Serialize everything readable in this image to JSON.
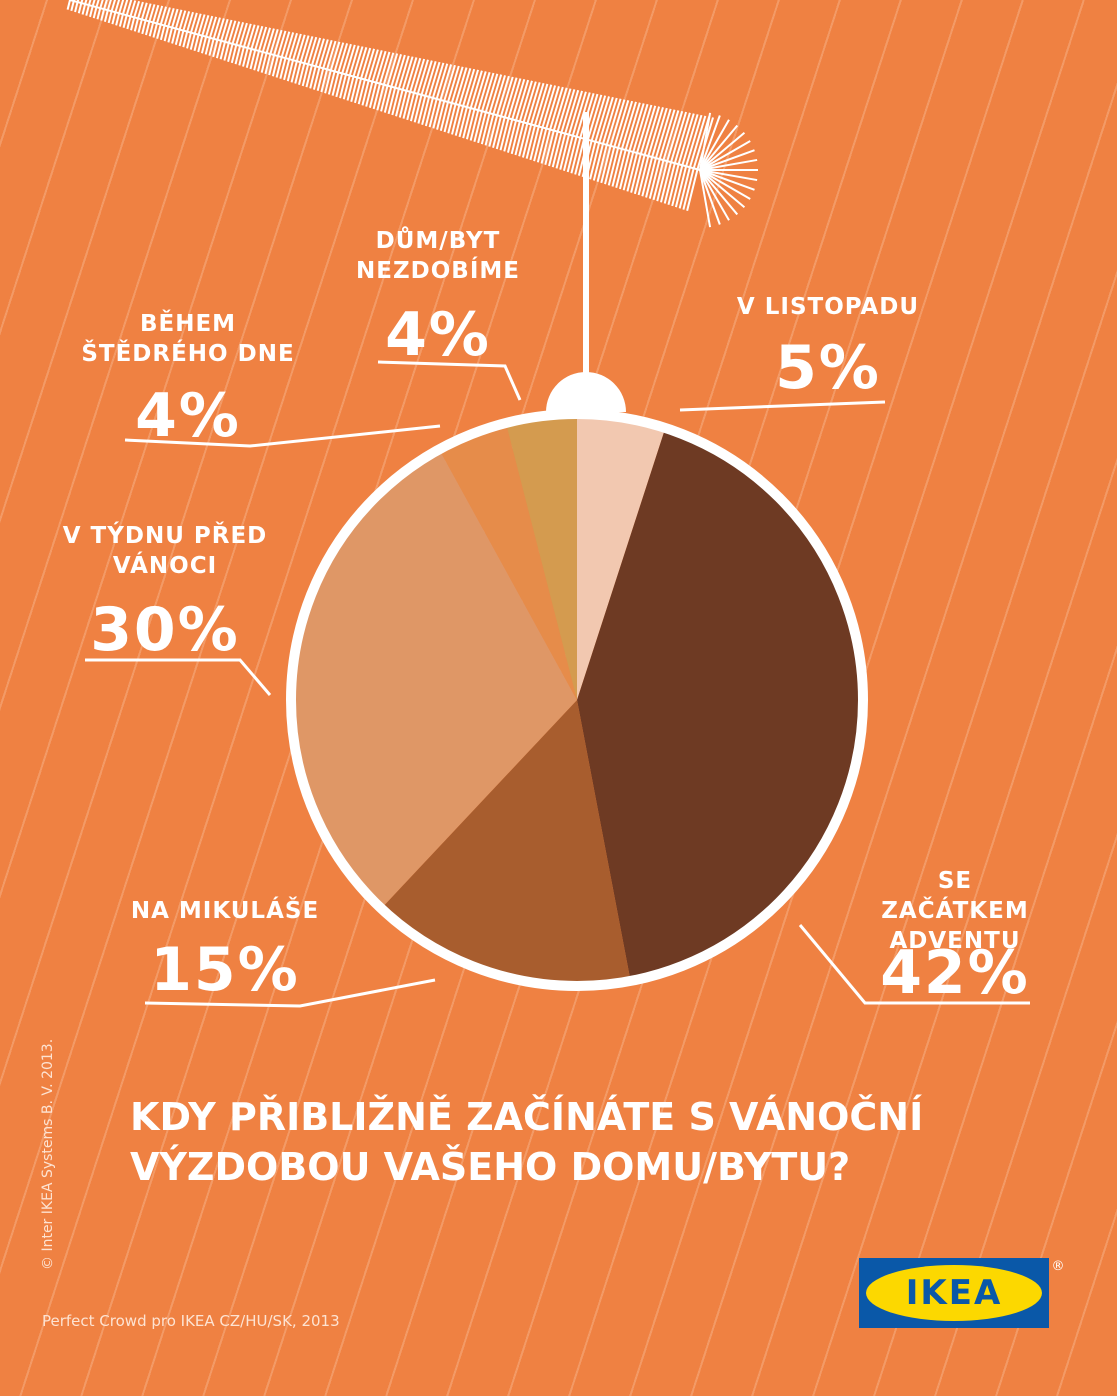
{
  "chart_data": {
    "type": "pie",
    "title": "KDY PŘIBLIŽNĚ ZAČÍNÁTE S VÁNOČNÍ\nVÝZDOBOU VAŠEHO DOMU/BYTU?",
    "categories": [
      "V LISTOPADU",
      "SE ZAČÁTKEM\nADVENTU",
      "NA MIKULÁŠE",
      "V TÝDNU PŘED\nVÁNOCI",
      "BĚHEM\nŠTĚDRÉHO DNE",
      "DŮM/BYT\nNEZDOBÍME"
    ],
    "values": [
      5,
      42,
      15,
      30,
      4,
      4
    ],
    "value_labels": [
      "5%",
      "42%",
      "15%",
      "30%",
      "4%",
      "4%"
    ],
    "colors": [
      "#f2c8b0",
      "#6e3a23",
      "#a85d2e",
      "#df9766",
      "#e68c4a",
      "#d49b4f"
    ]
  },
  "source": "Perfect Crowd pro IKEA CZ/HU/SK, 2013",
  "copyright": "© Inter IKEA Systems B. V. 2013.",
  "logo": {
    "text": "IKEA",
    "mark": "®"
  }
}
